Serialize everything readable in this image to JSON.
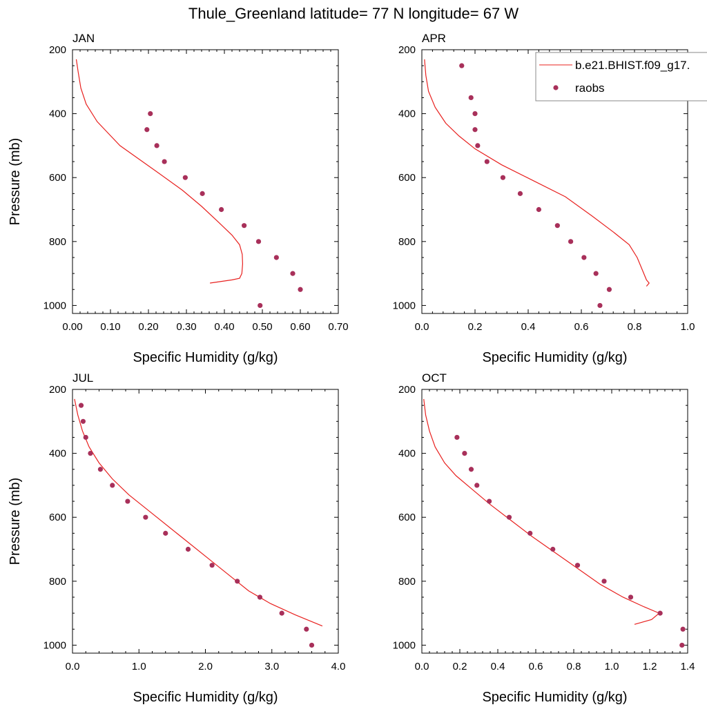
{
  "figure": {
    "title": "Thule_Greenland  latitude= 77 N longitude= 67 W"
  },
  "legend": {
    "placement": "top-right of APR panel",
    "entries": [
      {
        "label": "b.e21.BHIST.f09_g17.",
        "marker": "line",
        "color": "#e8201e"
      },
      {
        "label": "raobs",
        "marker": "dot",
        "color": "#a8305a"
      }
    ]
  },
  "colors": {
    "model_line": "#e8201e",
    "obs_marker": "#a8305a"
  },
  "chart_data": [
    {
      "type": "line",
      "title": "JAN",
      "xlabel": "Specific Humidity (g/kg)",
      "ylabel": "Pressure (mb)",
      "xlim": [
        0,
        0.7
      ],
      "ylim": [
        1025,
        200
      ],
      "y_reversed": true,
      "xticks": [
        0,
        0.1,
        0.2,
        0.3,
        0.4,
        0.5,
        0.6,
        0.7
      ],
      "xticklabels": [
        "0.00",
        "0.10",
        "0.20",
        "0.30",
        "0.40",
        "0.50",
        "0.60",
        "0.70"
      ],
      "yticks": [
        200,
        400,
        600,
        800,
        1000
      ],
      "yticklabels": [
        "200",
        "400",
        "600",
        "800",
        "1000"
      ],
      "series": [
        {
          "kind": "line",
          "x": [
            0.01,
            0.015,
            0.022,
            0.036,
            0.065,
            0.093,
            0.125,
            0.22,
            0.29,
            0.34,
            0.385,
            0.42,
            0.44,
            0.447,
            0.448,
            0.446,
            0.44,
            0.42,
            0.362
          ],
          "y": [
            230,
            270,
            320,
            370,
            425,
            460,
            500,
            580,
            640,
            690,
            740,
            780,
            810,
            840,
            870,
            900,
            915,
            920,
            930
          ]
        },
        {
          "kind": "scatter",
          "x": [
            0.205,
            0.196,
            0.222,
            0.242,
            0.297,
            0.342,
            0.392,
            0.452,
            0.49,
            0.537,
            0.58,
            0.6,
            0.494
          ],
          "y": [
            400,
            450,
            500,
            550,
            600,
            650,
            700,
            750,
            800,
            850,
            900,
            950,
            1000
          ]
        }
      ]
    },
    {
      "type": "line",
      "title": "APR",
      "xlabel": "Specific Humidity (g/kg)",
      "ylabel": "",
      "xlim": [
        0,
        1.0
      ],
      "ylim": [
        1025,
        200
      ],
      "y_reversed": true,
      "xticks": [
        0,
        0.2,
        0.4,
        0.6,
        0.8,
        1.0
      ],
      "xticklabels": [
        "0.0",
        "0.2",
        "0.4",
        "0.6",
        "0.8",
        "1.0"
      ],
      "yticks": [
        200,
        400,
        600,
        800,
        1000
      ],
      "yticklabels": [
        "200",
        "400",
        "600",
        "800",
        "1000"
      ],
      "series": [
        {
          "kind": "line",
          "x": [
            0.01,
            0.015,
            0.025,
            0.05,
            0.09,
            0.14,
            0.2,
            0.3,
            0.42,
            0.54,
            0.64,
            0.72,
            0.78,
            0.81,
            0.83,
            0.845,
            0.855,
            0.845
          ],
          "y": [
            230,
            280,
            330,
            380,
            430,
            470,
            510,
            560,
            610,
            660,
            720,
            770,
            810,
            850,
            890,
            920,
            930,
            940
          ]
        },
        {
          "kind": "scatter",
          "x": [
            0.15,
            0.185,
            0.2,
            0.2,
            0.21,
            0.245,
            0.305,
            0.37,
            0.44,
            0.51,
            0.56,
            0.61,
            0.655,
            0.705,
            0.67
          ],
          "y": [
            250,
            350,
            400,
            450,
            500,
            550,
            600,
            650,
            700,
            750,
            800,
            850,
            900,
            950,
            1000
          ]
        }
      ]
    },
    {
      "type": "line",
      "title": "JUL",
      "xlabel": "Specific Humidity (g/kg)",
      "ylabel": "Pressure (mb)",
      "xlim": [
        0,
        4.0
      ],
      "ylim": [
        1025,
        200
      ],
      "y_reversed": true,
      "xticks": [
        0,
        1,
        2,
        3,
        4
      ],
      "xticklabels": [
        "0.0",
        "1.0",
        "2.0",
        "3.0",
        "4.0"
      ],
      "yticks": [
        200,
        400,
        600,
        800,
        1000
      ],
      "yticklabels": [
        "200",
        "400",
        "600",
        "800",
        "1000"
      ],
      "series": [
        {
          "kind": "line",
          "x": [
            0.03,
            0.08,
            0.15,
            0.25,
            0.4,
            0.6,
            0.85,
            1.15,
            1.45,
            1.75,
            2.05,
            2.35,
            2.65,
            2.98,
            3.35,
            3.76
          ],
          "y": [
            230,
            280,
            330,
            380,
            430,
            480,
            530,
            580,
            630,
            680,
            730,
            780,
            830,
            870,
            905,
            940
          ]
        },
        {
          "kind": "scatter",
          "x": [
            0.13,
            0.16,
            0.2,
            0.27,
            0.42,
            0.6,
            0.83,
            1.1,
            1.4,
            1.74,
            2.1,
            2.48,
            2.82,
            3.15,
            3.52,
            3.6
          ],
          "y": [
            250,
            300,
            350,
            400,
            450,
            500,
            550,
            600,
            650,
            700,
            750,
            800,
            850,
            900,
            950,
            1000
          ]
        }
      ]
    },
    {
      "type": "line",
      "title": "OCT",
      "xlabel": "Specific Humidity (g/kg)",
      "ylabel": "",
      "xlim": [
        0,
        1.4
      ],
      "ylim": [
        1025,
        200
      ],
      "y_reversed": true,
      "xticks": [
        0,
        0.2,
        0.4,
        0.6,
        0.8,
        1.0,
        1.2,
        1.4
      ],
      "xticklabels": [
        "0.0",
        "0.2",
        "0.4",
        "0.6",
        "0.8",
        "1.0",
        "1.2",
        "1.4"
      ],
      "yticks": [
        200,
        400,
        600,
        800,
        1000
      ],
      "yticklabels": [
        "200",
        "400",
        "600",
        "800",
        "1000"
      ],
      "series": [
        {
          "kind": "line",
          "x": [
            0.01,
            0.02,
            0.04,
            0.07,
            0.12,
            0.18,
            0.26,
            0.36,
            0.47,
            0.58,
            0.7,
            0.82,
            0.94,
            1.06,
            1.17,
            1.25,
            1.21,
            1.12
          ],
          "y": [
            230,
            280,
            330,
            380,
            430,
            470,
            510,
            560,
            610,
            660,
            710,
            760,
            810,
            850,
            880,
            900,
            920,
            935
          ]
        },
        {
          "kind": "scatter",
          "x": [
            0.185,
            0.225,
            0.26,
            0.29,
            0.355,
            0.46,
            0.57,
            0.69,
            0.82,
            0.96,
            1.1,
            1.255,
            1.375,
            1.37
          ],
          "y": [
            350,
            400,
            450,
            500,
            550,
            600,
            650,
            700,
            750,
            800,
            850,
            900,
            950,
            1000
          ]
        }
      ]
    }
  ]
}
